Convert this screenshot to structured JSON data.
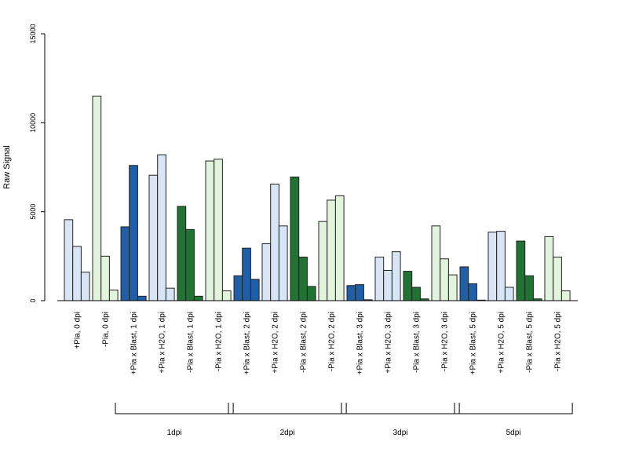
{
  "chart_data": {
    "type": "bar",
    "ylabel": "Raw Signal",
    "ylim": [
      0,
      15000
    ],
    "yticks": [
      0,
      5000,
      10000,
      15000
    ],
    "bar_colors": {
      "dark_blue": "#1f5fa8",
      "light_blue": "#d8e5f4",
      "dark_green": "#1f7433",
      "light_green": "#e2f4dc"
    },
    "categories": [
      {
        "label": "+Pia, 0 dpi",
        "color": "light_blue",
        "values": [
          4550,
          3050,
          1600
        ]
      },
      {
        "label": "-Pia, 0 dpi",
        "color": "light_green",
        "values": [
          11500,
          2500,
          600
        ]
      },
      {
        "label": "+Pia x Blast, 1 dpi",
        "color": "dark_blue",
        "values": [
          4150,
          7600,
          250
        ]
      },
      {
        "label": "+Pia x H2O, 1 dpi",
        "color": "light_blue",
        "values": [
          7050,
          8200,
          700
        ]
      },
      {
        "label": "-Pia x Blast, 1 dpi",
        "color": "dark_green",
        "values": [
          5300,
          4000,
          250
        ]
      },
      {
        "label": "-Pia x H2O, 1 dpi",
        "color": "light_green",
        "values": [
          7850,
          7950,
          550
        ]
      },
      {
        "label": "+Pia x Blast, 2 dpi",
        "color": "dark_blue",
        "values": [
          1400,
          2950,
          1200
        ]
      },
      {
        "label": "+Pia x H2O, 2 dpi",
        "color": "light_blue",
        "values": [
          3200,
          6550,
          4200
        ]
      },
      {
        "label": "-Pia x Blast, 2 dpi",
        "color": "dark_green",
        "values": [
          6950,
          2450,
          800
        ]
      },
      {
        "label": "-Pia x H2O, 2 dpi",
        "color": "light_green",
        "values": [
          4450,
          5650,
          5900
        ]
      },
      {
        "label": "+Pia x Blast, 3 dpi",
        "color": "dark_blue",
        "values": [
          850,
          900,
          50
        ]
      },
      {
        "label": "+Pia x H2O, 3 dpi",
        "color": "light_blue",
        "values": [
          2450,
          1700,
          2750
        ]
      },
      {
        "label": "-Pia x Blast, 3 dpi",
        "color": "dark_green",
        "values": [
          1650,
          750,
          100
        ]
      },
      {
        "label": "-Pia x H2O, 3 dpi",
        "color": "light_green",
        "values": [
          4200,
          2350,
          1450
        ]
      },
      {
        "label": "+Pia x Blast, 5 dpi",
        "color": "dark_blue",
        "values": [
          1900,
          950,
          30
        ]
      },
      {
        "label": "+Pia x H2O, 5 dpi",
        "color": "light_blue",
        "values": [
          3850,
          3900,
          750
        ]
      },
      {
        "label": "-Pia x Blast, 5 dpi",
        "color": "dark_green",
        "values": [
          3350,
          1400,
          100
        ]
      },
      {
        "label": "-Pia x H2O, 5 dpi",
        "color": "light_green",
        "values": [
          3600,
          2450,
          550
        ]
      }
    ],
    "groups": [
      {
        "label": "1dpi",
        "first_category": 2,
        "last_category": 5
      },
      {
        "label": "2dpi",
        "first_category": 6,
        "last_category": 9
      },
      {
        "label": "3dpi",
        "first_category": 10,
        "last_category": 13
      },
      {
        "label": "5dpi",
        "first_category": 14,
        "last_category": 17
      }
    ]
  }
}
